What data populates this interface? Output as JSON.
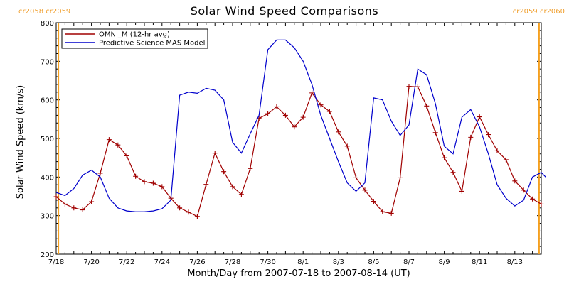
{
  "title": "Solar Wind Speed Comparisons",
  "cr_left_label": "cr2058 cr2059",
  "cr_right_label": "cr2059 cr2060",
  "chart_data": {
    "type": "line",
    "title": "Solar Wind Speed Comparisons",
    "xlabel": "Month/Day from 2007-07-18 to 2007-08-14 (UT)",
    "ylabel": "Solar Wind Speed (km/s)",
    "xlim": [
      "2007-07-18T00:00",
      "2007-08-14T12:00"
    ],
    "ylim": [
      200,
      800
    ],
    "yticks": [
      200,
      300,
      400,
      500,
      600,
      700,
      800
    ],
    "xticks": [
      {
        "label": "7/18",
        "date": "2007-07-18"
      },
      {
        "label": "7/20",
        "date": "2007-07-20"
      },
      {
        "label": "7/22",
        "date": "2007-07-22"
      },
      {
        "label": "7/24",
        "date": "2007-07-24"
      },
      {
        "label": "7/26",
        "date": "2007-07-26"
      },
      {
        "label": "7/28",
        "date": "2007-07-28"
      },
      {
        "label": "7/30",
        "date": "2007-07-30"
      },
      {
        "label": "8/1",
        "date": "2007-08-01"
      },
      {
        "label": "8/3",
        "date": "2007-08-03"
      },
      {
        "label": "8/5",
        "date": "2007-08-05"
      },
      {
        "label": "8/7",
        "date": "2007-08-07"
      },
      {
        "label": "8/9",
        "date": "2007-08-09"
      },
      {
        "label": "8/11",
        "date": "2007-08-11"
      },
      {
        "label": "8/13",
        "date": "2007-08-13"
      }
    ],
    "vertical_markers": [
      {
        "date": "2007-07-18T03:00",
        "color": "#f5a020"
      },
      {
        "date": "2007-08-14T09:00",
        "color": "#f5a020"
      }
    ],
    "legend_position": "top-left",
    "series": [
      {
        "name": "OMNI_M (12-hr avg)",
        "color": "#a00000",
        "marker": "+",
        "points": [
          [
            "2007-07-18T00:00",
            349
          ],
          [
            "2007-07-18T12:00",
            330
          ],
          [
            "2007-07-19T00:00",
            320
          ],
          [
            "2007-07-19T12:00",
            315
          ],
          [
            "2007-07-20T00:00",
            336
          ],
          [
            "2007-07-20T12:00",
            410
          ],
          [
            "2007-07-21T00:00",
            497
          ],
          [
            "2007-07-21T12:00",
            483
          ],
          [
            "2007-07-22T00:00",
            455
          ],
          [
            "2007-07-22T12:00",
            402
          ],
          [
            "2007-07-23T00:00",
            388
          ],
          [
            "2007-07-23T12:00",
            384
          ],
          [
            "2007-07-24T00:00",
            375
          ],
          [
            "2007-07-24T12:00",
            345
          ],
          [
            "2007-07-25T00:00",
            320
          ],
          [
            "2007-07-25T12:00",
            309
          ],
          [
            "2007-07-26T00:00",
            298
          ],
          [
            "2007-07-26T12:00",
            381
          ],
          [
            "2007-07-27T00:00",
            462
          ],
          [
            "2007-07-27T12:00",
            414
          ],
          [
            "2007-07-28T00:00",
            375
          ],
          [
            "2007-07-28T12:00",
            355
          ],
          [
            "2007-07-29T00:00",
            422
          ],
          [
            "2007-07-29T12:00",
            552
          ],
          [
            "2007-07-30T00:00",
            564
          ],
          [
            "2007-07-30T12:00",
            582
          ],
          [
            "2007-07-31T00:00",
            560
          ],
          [
            "2007-07-31T12:00",
            530
          ],
          [
            "2007-08-01T00:00",
            555
          ],
          [
            "2007-08-01T12:00",
            618
          ],
          [
            "2007-08-02T00:00",
            587
          ],
          [
            "2007-08-02T12:00",
            570
          ],
          [
            "2007-08-03T00:00",
            517
          ],
          [
            "2007-08-03T12:00",
            480
          ],
          [
            "2007-08-04T00:00",
            398
          ],
          [
            "2007-08-04T12:00",
            366
          ],
          [
            "2007-08-05T00:00",
            337
          ],
          [
            "2007-08-05T12:00",
            310
          ],
          [
            "2007-08-06T00:00",
            306
          ],
          [
            "2007-08-06T12:00",
            398
          ],
          [
            "2007-08-07T00:00",
            635
          ],
          [
            "2007-08-07T12:00",
            634
          ],
          [
            "2007-08-08T00:00",
            584
          ],
          [
            "2007-08-08T12:00",
            515
          ],
          [
            "2007-08-09T00:00",
            450
          ],
          [
            "2007-08-09T12:00",
            412
          ],
          [
            "2007-08-10T00:00",
            363
          ],
          [
            "2007-08-10T12:00",
            503
          ],
          [
            "2007-08-11T00:00",
            556
          ],
          [
            "2007-08-11T12:00",
            510
          ],
          [
            "2007-08-12T00:00",
            468
          ],
          [
            "2007-08-12T12:00",
            445
          ],
          [
            "2007-08-13T00:00",
            390
          ],
          [
            "2007-08-13T12:00",
            366
          ],
          [
            "2007-08-14T00:00",
            343
          ],
          [
            "2007-08-14T12:00",
            330
          ]
        ]
      },
      {
        "name": "Predictive Science MAS Model",
        "color": "#0000cc",
        "marker": "none",
        "points": [
          [
            "2007-07-18T00:00",
            360
          ],
          [
            "2007-07-18T12:00",
            352
          ],
          [
            "2007-07-19T00:00",
            370
          ],
          [
            "2007-07-19T12:00",
            405
          ],
          [
            "2007-07-20T00:00",
            418
          ],
          [
            "2007-07-20T12:00",
            400
          ],
          [
            "2007-07-21T00:00",
            345
          ],
          [
            "2007-07-21T12:00",
            320
          ],
          [
            "2007-07-22T00:00",
            312
          ],
          [
            "2007-07-22T12:00",
            310
          ],
          [
            "2007-07-23T00:00",
            310
          ],
          [
            "2007-07-23T12:00",
            312
          ],
          [
            "2007-07-24T00:00",
            318
          ],
          [
            "2007-07-24T12:00",
            340
          ],
          [
            "2007-07-25T00:00",
            612
          ],
          [
            "2007-07-25T12:00",
            620
          ],
          [
            "2007-07-26T00:00",
            617
          ],
          [
            "2007-07-26T12:00",
            630
          ],
          [
            "2007-07-27T00:00",
            625
          ],
          [
            "2007-07-27T12:00",
            600
          ],
          [
            "2007-07-28T00:00",
            490
          ],
          [
            "2007-07-28T12:00",
            462
          ],
          [
            "2007-07-29T00:00",
            512
          ],
          [
            "2007-07-29T12:00",
            560
          ],
          [
            "2007-07-30T00:00",
            730
          ],
          [
            "2007-07-30T12:00",
            755
          ],
          [
            "2007-07-31T00:00",
            755
          ],
          [
            "2007-07-31T12:00",
            735
          ],
          [
            "2007-08-01T00:00",
            700
          ],
          [
            "2007-08-01T12:00",
            640
          ],
          [
            "2007-08-02T00:00",
            560
          ],
          [
            "2007-08-02T12:00",
            500
          ],
          [
            "2007-08-03T00:00",
            440
          ],
          [
            "2007-08-03T12:00",
            385
          ],
          [
            "2007-08-04T00:00",
            363
          ],
          [
            "2007-08-04T12:00",
            385
          ],
          [
            "2007-08-05T00:00",
            605
          ],
          [
            "2007-08-05T12:00",
            600
          ],
          [
            "2007-08-06T00:00",
            545
          ],
          [
            "2007-08-06T12:00",
            508
          ],
          [
            "2007-08-07T00:00",
            535
          ],
          [
            "2007-08-07T12:00",
            680
          ],
          [
            "2007-08-08T00:00",
            665
          ],
          [
            "2007-08-08T12:00",
            590
          ],
          [
            "2007-08-09T00:00",
            480
          ],
          [
            "2007-08-09T12:00",
            460
          ],
          [
            "2007-08-10T00:00",
            555
          ],
          [
            "2007-08-10T12:00",
            575
          ],
          [
            "2007-08-11T00:00",
            530
          ],
          [
            "2007-08-11T12:00",
            460
          ],
          [
            "2007-08-12T00:00",
            380
          ],
          [
            "2007-08-12T12:00",
            345
          ],
          [
            "2007-08-13T00:00",
            325
          ],
          [
            "2007-08-13T12:00",
            340
          ],
          [
            "2007-08-14T00:00",
            400
          ],
          [
            "2007-08-14T12:00",
            412
          ],
          [
            "2007-08-14T18:00",
            400
          ]
        ]
      }
    ]
  }
}
